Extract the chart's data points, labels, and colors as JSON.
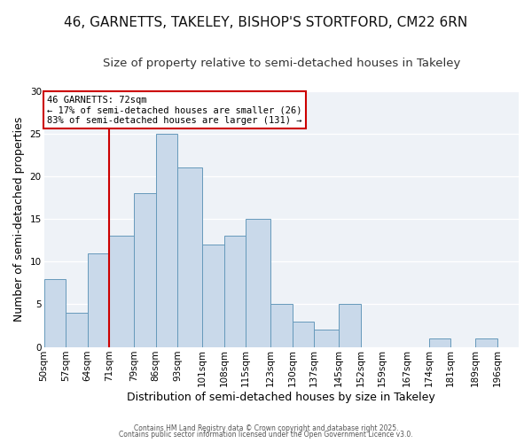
{
  "title": "46, GARNETTS, TAKELEY, BISHOP'S STORTFORD, CM22 6RN",
  "subtitle": "Size of property relative to semi-detached houses in Takeley",
  "xlabel": "Distribution of semi-detached houses by size in Takeley",
  "ylabel": "Number of semi-detached properties",
  "categories": [
    "50sqm",
    "57sqm",
    "64sqm",
    "71sqm",
    "79sqm",
    "86sqm",
    "93sqm",
    "101sqm",
    "108sqm",
    "115sqm",
    "123sqm",
    "130sqm",
    "137sqm",
    "145sqm",
    "152sqm",
    "159sqm",
    "167sqm",
    "174sqm",
    "181sqm",
    "189sqm",
    "196sqm"
  ],
  "bin_edges": [
    50,
    57,
    64,
    71,
    79,
    86,
    93,
    101,
    108,
    115,
    123,
    130,
    137,
    145,
    152,
    159,
    167,
    174,
    181,
    189,
    196,
    203
  ],
  "values": [
    8,
    4,
    11,
    13,
    18,
    25,
    21,
    12,
    13,
    15,
    5,
    3,
    2,
    5,
    0,
    0,
    0,
    1,
    0,
    1,
    0
  ],
  "bar_color": "#c9d9ea",
  "bar_edge_color": "#6699bb",
  "vline_x": 71,
  "vline_color": "#cc0000",
  "annotation_title": "46 GARNETTS: 72sqm",
  "annotation_line1": "← 17% of semi-detached houses are smaller (26)",
  "annotation_line2": "83% of semi-detached houses are larger (131) →",
  "annotation_box_facecolor": "#ffffff",
  "annotation_box_edgecolor": "#cc0000",
  "ylim": [
    0,
    30
  ],
  "yticks": [
    0,
    5,
    10,
    15,
    20,
    25,
    30
  ],
  "bg_color": "#ffffff",
  "plot_bg_color": "#eef2f7",
  "grid_color": "#ffffff",
  "footer1": "Contains HM Land Registry data © Crown copyright and database right 2025.",
  "footer2": "Contains public sector information licensed under the Open Government Licence v3.0.",
  "title_fontsize": 11,
  "subtitle_fontsize": 9.5,
  "xlabel_fontsize": 9,
  "ylabel_fontsize": 9,
  "tick_fontsize": 7.5,
  "annotation_fontsize": 7.5,
  "footer_fontsize": 5.5
}
